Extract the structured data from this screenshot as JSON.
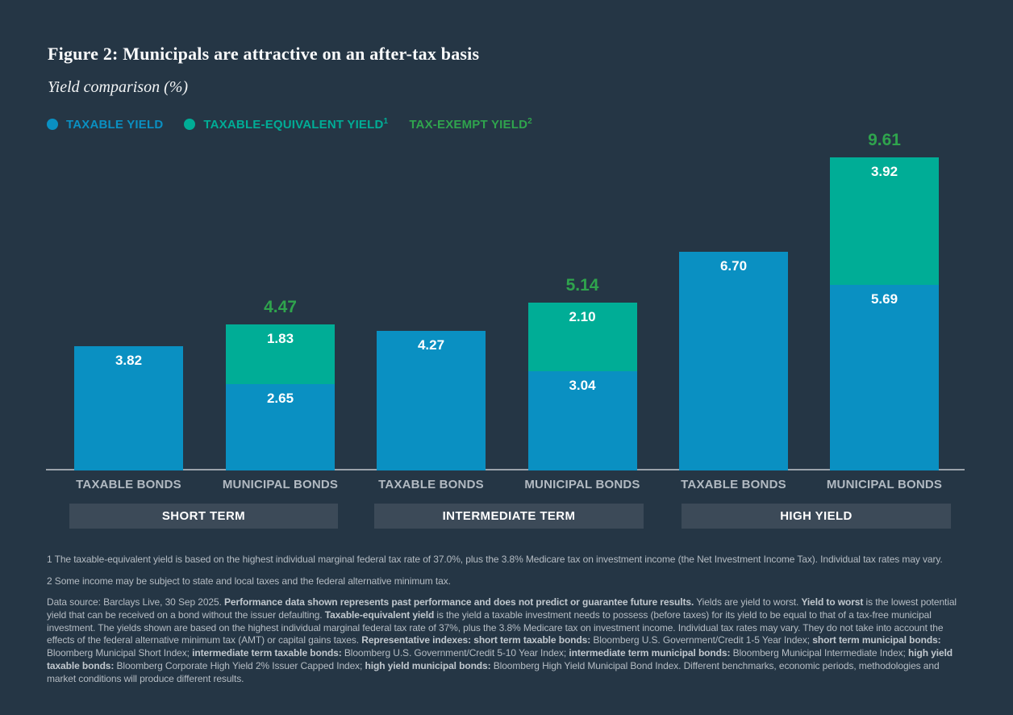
{
  "title": "Figure 2: Municipals are attractive on an after-tax basis",
  "subtitle": "Yield comparison (%)",
  "palette": {
    "background": "#253645",
    "blue": "#0a90c2",
    "teal": "#00ad96",
    "green": "#2fa44d",
    "band": "#3c4a58",
    "axis_line": "#9ba3ab",
    "category_label": "#b2bac2",
    "footnote_text": "#b5bcc3"
  },
  "legend": [
    {
      "label": "TAXABLE YIELD",
      "sup": "",
      "color": "#0a90c2",
      "dot": true
    },
    {
      "label": "TAXABLE-EQUIVALENT YIELD",
      "sup": "1",
      "color": "#00ad96",
      "dot": true
    },
    {
      "label": "TAX-EXEMPT YIELD",
      "sup": "2",
      "color": "#2fa44d",
      "dot": false
    }
  ],
  "chart_data": {
    "type": "bar",
    "stacked": true,
    "unit": "%",
    "ylim": [
      0,
      10.4
    ],
    "grid": false,
    "y_axis_visible": false,
    "legend_position": "top-left",
    "total_label_color": "#2fa44d",
    "groups": [
      {
        "label": "SHORT TERM",
        "bars": [
          {
            "category": "TAXABLE BONDS",
            "segments": [
              {
                "series": "TAXABLE YIELD",
                "value": 3.82,
                "color_key": "blue"
              }
            ]
          },
          {
            "category": "MUNICIPAL BONDS",
            "segments": [
              {
                "series": "TAX-EXEMPT YIELD",
                "value": 2.65,
                "color_key": "blue"
              },
              {
                "series": "TAXABLE-EQUIVALENT YIELD",
                "value": 1.83,
                "color_key": "teal"
              }
            ],
            "total": 4.47
          }
        ]
      },
      {
        "label": "INTERMEDIATE TERM",
        "bars": [
          {
            "category": "TAXABLE BONDS",
            "segments": [
              {
                "series": "TAXABLE YIELD",
                "value": 4.27,
                "color_key": "blue"
              }
            ]
          },
          {
            "category": "MUNICIPAL BONDS",
            "segments": [
              {
                "series": "TAX-EXEMPT YIELD",
                "value": 3.04,
                "color_key": "blue"
              },
              {
                "series": "TAXABLE-EQUIVALENT YIELD",
                "value": 2.1,
                "color_key": "teal"
              }
            ],
            "total": 5.14
          }
        ]
      },
      {
        "label": "HIGH YIELD",
        "bars": [
          {
            "category": "TAXABLE BONDS",
            "segments": [
              {
                "series": "TAXABLE YIELD",
                "value": 6.7,
                "color_key": "blue"
              }
            ]
          },
          {
            "category": "MUNICIPAL BONDS",
            "segments": [
              {
                "series": "TAX-EXEMPT YIELD",
                "value": 5.69,
                "color_key": "blue"
              },
              {
                "series": "TAXABLE-EQUIVALENT YIELD",
                "value": 3.92,
                "color_key": "teal"
              }
            ],
            "total": 9.61
          }
        ]
      }
    ]
  },
  "footnotes": [
    "1 The taxable-equivalent yield is based on the highest individual marginal federal tax rate of 37.0%, plus the 3.8% Medicare tax on investment income (the Net Investment Income Tax). Individual tax rates may vary.",
    "2 Some income may be subject to state and local taxes and the federal alternative minimum tax."
  ],
  "disclaimer_segments": [
    {
      "t": "Data source: Barclays Live, 30 Sep 2025. ",
      "b": false
    },
    {
      "t": "Performance data shown represents past performance and does not predict or guarantee future results.",
      "b": true
    },
    {
      "t": " Yields are yield to worst. ",
      "b": false
    },
    {
      "t": "Yield to worst",
      "b": true
    },
    {
      "t": " is the lowest potential yield that can be received on a bond without the issuer defaulting. ",
      "b": false
    },
    {
      "t": "Taxable-equivalent yield",
      "b": true
    },
    {
      "t": " is the yield a taxable investment needs to possess (before taxes) for its yield to be equal to that of a tax-free municipal investment. The yields shown are based on the highest individual marginal federal tax rate of 37%, plus the 3.8% Medicare tax on investment income. Individual tax rates may vary. They do not take into account the effects of the federal alternative minimum tax (AMT) or capital gains taxes. ",
      "b": false
    },
    {
      "t": "Representative indexes: short term taxable bonds:",
      "b": true
    },
    {
      "t": " Bloomberg U.S. Government/Credit 1-5 Year Index; ",
      "b": false
    },
    {
      "t": "short term municipal bonds:",
      "b": true
    },
    {
      "t": " Bloomberg Municipal Short Index; ",
      "b": false
    },
    {
      "t": "intermediate term taxable bonds:",
      "b": true
    },
    {
      "t": " Bloomberg U.S. Government/Credit 5-10 Year Index; ",
      "b": false
    },
    {
      "t": "intermediate term municipal bonds:",
      "b": true
    },
    {
      "t": " Bloomberg Municipal Intermediate Index; ",
      "b": false
    },
    {
      "t": "high yield taxable bonds:",
      "b": true
    },
    {
      "t": " Bloomberg Corporate High Yield 2% Issuer Capped Index; ",
      "b": false
    },
    {
      "t": "high yield municipal bonds:",
      "b": true
    },
    {
      "t": " Bloomberg High Yield Municipal Bond Index. Different benchmarks, economic periods, methodologies and market conditions will produce different results.",
      "b": false
    }
  ]
}
